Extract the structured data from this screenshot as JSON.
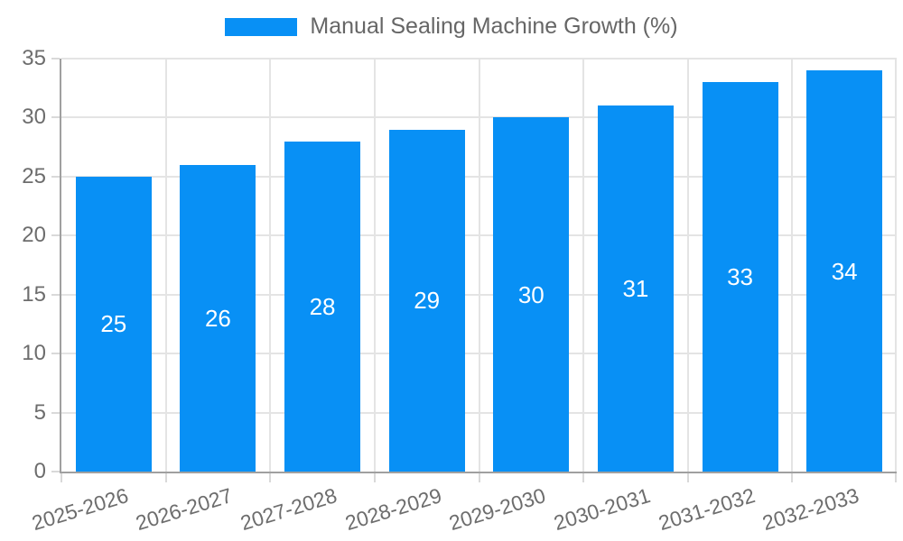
{
  "legend": {
    "label": "Manual Sealing Machine Growth (%)"
  },
  "chart_data": {
    "type": "bar",
    "title": "Manual Sealing Machine Growth (%)",
    "categories": [
      "2025-2026",
      "2026-2027",
      "2027-2028",
      "2028-2029",
      "2029-2030",
      "2030-2031",
      "2031-2032",
      "2032-2033"
    ],
    "values": [
      25,
      26,
      28,
      29,
      30,
      31,
      33,
      34
    ],
    "xlabel": "",
    "ylabel": "",
    "ylim": [
      0,
      35
    ],
    "yticks": [
      0,
      5,
      10,
      15,
      20,
      25,
      30,
      35
    ],
    "grid": true,
    "legend_position": "top-center",
    "value_labels": "inside-center",
    "x_label_rotation_deg": -17,
    "colors": {
      "bar": "#0890f5",
      "grid": "#e4e4e4",
      "axis_line": "#a0a0a0",
      "tick": "#d9d9d9",
      "axis_text": "#6d6d6d",
      "legend_text": "#666666",
      "value_text": "#ffffff",
      "background": "#ffffff"
    }
  }
}
